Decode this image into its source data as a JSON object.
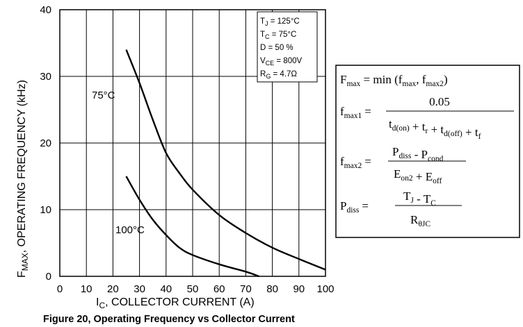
{
  "chart_data": {
    "type": "line",
    "xlabel_main": "I",
    "xlabel_sub": "C",
    "xlabel_rest": ", COLLECTOR CURRENT (A)",
    "ylabel_main": "F",
    "ylabel_sub": "MAX",
    "ylabel_rest": ", OPERATING FREQUENCY (kHz)",
    "xlim": [
      0,
      100
    ],
    "ylim": [
      0,
      40
    ],
    "x_ticks": [
      "0",
      "10",
      "20",
      "30",
      "40",
      "50",
      "60",
      "70",
      "80",
      "90",
      "100"
    ],
    "y_ticks": [
      "0",
      "10",
      "20",
      "30",
      "40"
    ],
    "grid": true,
    "series": [
      {
        "name": "75°C",
        "x": [
          25,
          30,
          35,
          40,
          45,
          50,
          60,
          70,
          80,
          90,
          100
        ],
        "y": [
          34,
          29,
          23.5,
          18.5,
          15.5,
          13,
          9.2,
          6.5,
          4.3,
          2.6,
          1.0
        ]
      },
      {
        "name": "100°C",
        "x": [
          25,
          30,
          35,
          40,
          45,
          50,
          60,
          70,
          75
        ],
        "y": [
          15,
          11.5,
          8.5,
          6.2,
          4.3,
          3.2,
          1.8,
          0.7,
          0
        ]
      }
    ],
    "conditions": [
      {
        "sym": "T",
        "sub": "J",
        "val": " =  125°C"
      },
      {
        "sym": "T",
        "sub": "C",
        "val": " =  75°C"
      },
      {
        "sym": "D",
        "sub": "",
        "val": " = 50 %"
      },
      {
        "sym": "V",
        "sub": "CE",
        "val": " =  800V"
      },
      {
        "sym": "R",
        "sub": "G",
        "val": " = 4.7Ω"
      }
    ],
    "caption": "Figure 20, Operating  Frequency  vs Collector  Current"
  },
  "formulas": {
    "line1": {
      "lhs": "F",
      "lhs_sub": "max",
      "rhs_a": " = min (f",
      "rhs_sub1": "max",
      "rhs_b": ", f",
      "rhs_sub2": "max2",
      "rhs_c": ")"
    },
    "line2": {
      "lhs": "f",
      "lhs_sub": "max1",
      "eq": "=",
      "num": "0.05",
      "den": [
        {
          "t": "t",
          "s": "d(on)"
        },
        {
          "t": " + t",
          "s": "r"
        },
        {
          "t": " + t",
          "s": "d(off)"
        },
        {
          "t": " + t",
          "s": "f"
        }
      ]
    },
    "line3": {
      "lhs": "f",
      "lhs_sub": "max2",
      "eq": "=",
      "num": [
        {
          "t": "P",
          "s": "diss"
        },
        {
          "t": " - P",
          "s": "cond"
        }
      ],
      "den": [
        {
          "t": "E",
          "s": "on2"
        },
        {
          "t": " + E",
          "s": "off"
        }
      ]
    },
    "line4": {
      "lhs": "P",
      "lhs_sub": "diss",
      "eq": "=",
      "num": [
        {
          "t": "T",
          "s": "J"
        },
        {
          "t": " - T",
          "s": "C"
        }
      ],
      "den": [
        {
          "t": "R",
          "s": "θJC"
        }
      ]
    }
  }
}
